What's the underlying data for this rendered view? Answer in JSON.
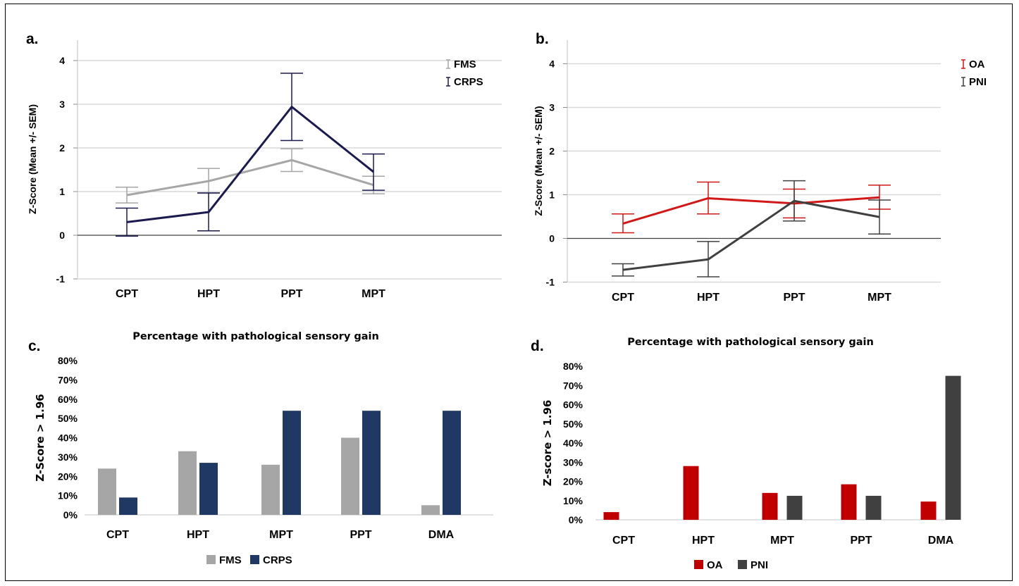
{
  "panels": {
    "a": "a.",
    "b": "b.",
    "c": "c.",
    "d": "d."
  },
  "chart_data": [
    {
      "id": "a",
      "type": "line",
      "ylabel": "Z-Score (Mean +/- SEM)",
      "ylim": [
        -1,
        4
      ],
      "yticks": [
        "-1",
        "0",
        "1",
        "2",
        "3",
        "4"
      ],
      "categories": [
        "CPT",
        "HPT",
        "PPT",
        "MPT"
      ],
      "grid": true,
      "legend_position": "top-right",
      "series": [
        {
          "name": "FMS",
          "color": "#a6a6a6",
          "values": [
            0.92,
            1.24,
            1.72,
            1.15
          ],
          "err_low": [
            0.74,
            0.96,
            1.46,
            0.95
          ],
          "err_high": [
            1.1,
            1.53,
            1.98,
            1.35
          ]
        },
        {
          "name": "CRPS",
          "color": "#1a1a4e",
          "values": [
            0.3,
            0.53,
            2.94,
            1.45
          ],
          "err_low": [
            -0.02,
            0.1,
            2.17,
            1.03
          ],
          "err_high": [
            0.62,
            0.97,
            3.71,
            1.86
          ]
        }
      ]
    },
    {
      "id": "b",
      "type": "line",
      "ylabel": "Z-Score (Mean +/- SEM)",
      "ylim": [
        -1,
        4
      ],
      "yticks": [
        "-1",
        "0",
        "1",
        "2",
        "3",
        "4"
      ],
      "categories": [
        "CPT",
        "HPT",
        "PPT",
        "MPT"
      ],
      "grid": true,
      "legend_position": "top-right",
      "series": [
        {
          "name": "OA",
          "color": "#d01818",
          "values": [
            0.34,
            0.92,
            0.8,
            0.94
          ],
          "err_low": [
            0.13,
            0.56,
            0.47,
            0.67
          ],
          "err_high": [
            0.56,
            1.29,
            1.13,
            1.22
          ]
        },
        {
          "name": "PNI",
          "color": "#404040",
          "values": [
            -0.72,
            -0.48,
            0.86,
            0.49
          ],
          "err_low": [
            -0.86,
            -0.88,
            0.4,
            0.1
          ],
          "err_high": [
            -0.58,
            -0.07,
            1.32,
            0.88
          ]
        }
      ]
    },
    {
      "id": "c",
      "type": "bar",
      "title": "Percentage with pathological sensory gain",
      "ylabel": "Z-Score  > 1.96",
      "ylim": [
        0,
        80
      ],
      "yticks": [
        "0%",
        "10%",
        "20%",
        "30%",
        "40%",
        "50%",
        "60%",
        "70%",
        "80%"
      ],
      "categories": [
        "CPT",
        "HPT",
        "MPT",
        "PPT",
        "DMA"
      ],
      "legend_position": "bottom",
      "series": [
        {
          "name": "FMS",
          "color": "#a6a6a6",
          "values": [
            24,
            33,
            26,
            40,
            5
          ]
        },
        {
          "name": "CRPS",
          "color": "#203864",
          "values": [
            9,
            27,
            54,
            54,
            54
          ]
        }
      ]
    },
    {
      "id": "d",
      "type": "bar",
      "title": "Percentage with pathological sensory gain",
      "ylabel": "Z-score > 1.96",
      "ylim": [
        0,
        80
      ],
      "yticks": [
        "0%",
        "10%",
        "20%",
        "30%",
        "40%",
        "50%",
        "60%",
        "70%",
        "80%"
      ],
      "categories": [
        "CPT",
        "HPT",
        "MPT",
        "PPT",
        "DMA"
      ],
      "legend_position": "bottom",
      "series": [
        {
          "name": "OA",
          "color": "#c00000",
          "values": [
            4,
            28,
            14,
            18.5,
            9.5
          ]
        },
        {
          "name": "PNI",
          "color": "#404040",
          "values": [
            0,
            0,
            12.5,
            12.5,
            75
          ]
        }
      ]
    }
  ]
}
